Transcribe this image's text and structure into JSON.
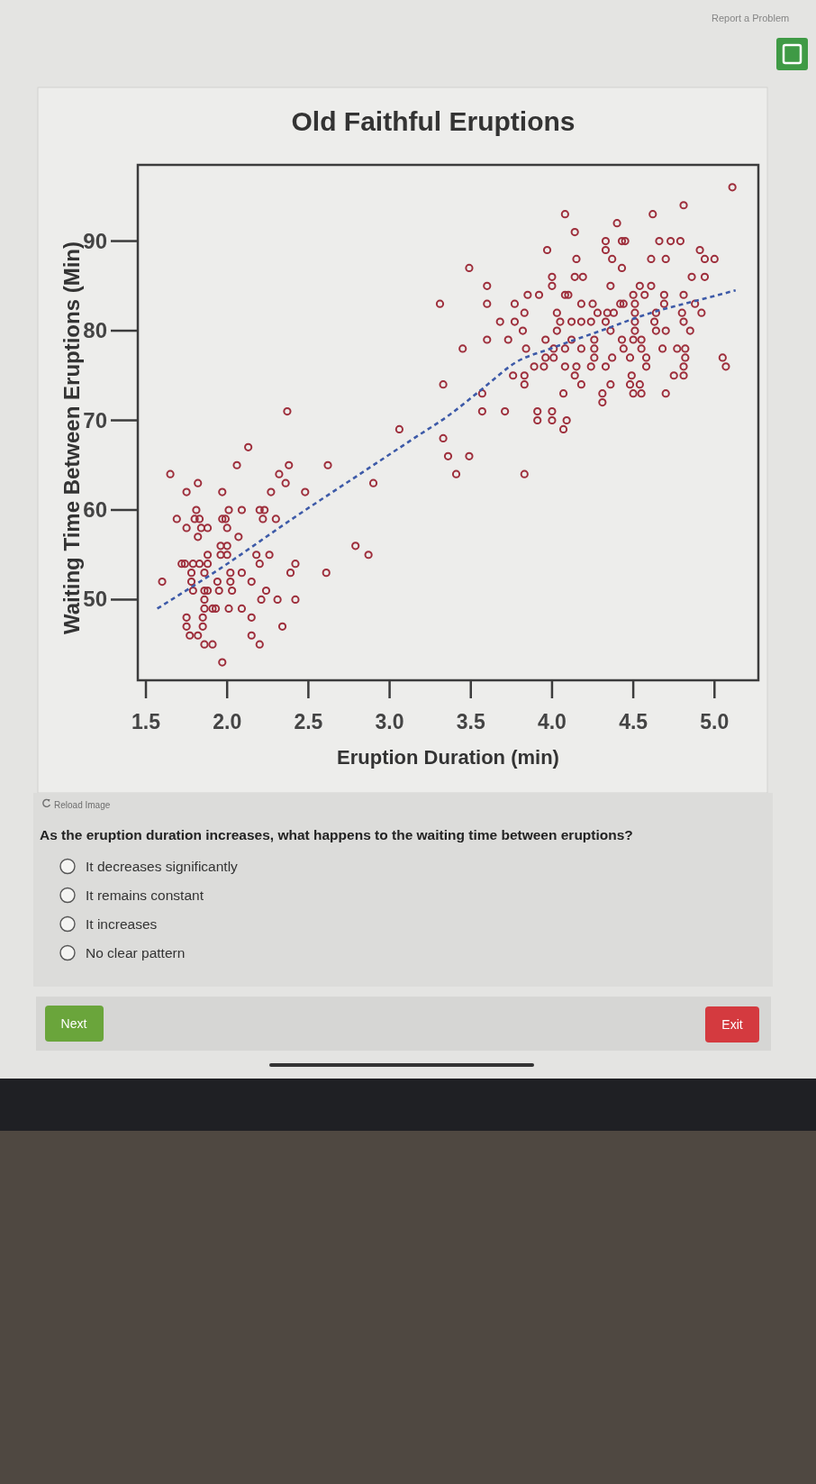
{
  "chart_data": {
    "type": "scatter",
    "title": "Old Faithful Eruptions",
    "xlabel": "Eruption Duration (min)",
    "ylabel": "Waiting Time Between Eruptions (Min)",
    "xlim": [
      1.45,
      5.27
    ],
    "ylim": [
      41,
      98.5
    ],
    "xticks": [
      1.5,
      {
        "value": 2,
        "label": "2.0"
      },
      2.5,
      {
        "value": 3,
        "label": "3.0"
      },
      3.5,
      {
        "value": 4,
        "label": "4.0"
      },
      4.5,
      {
        "value": 5,
        "label": "5.0"
      }
    ],
    "yticks": [
      50,
      60,
      70,
      80,
      90
    ],
    "marker": "circle",
    "series": [
      {
        "color": "#9e2f3c",
        "x": [
          2.37,
          3.06,
          2.13,
          2.06,
          2.38,
          2.62,
          1.65,
          2.32,
          1.82,
          2.36,
          2.9,
          1.75,
          1.97,
          2.27,
          2.48,
          1.81,
          2.01,
          2.09,
          2.2,
          2.23,
          1.69,
          1.8,
          1.83,
          1.97,
          1.99,
          2.22,
          2.3,
          1.75,
          1.84,
          1.88,
          2.0,
          1.82,
          2.07,
          1.96,
          2.0,
          2.79,
          1.88,
          1.96,
          2.0,
          2.18,
          2.26,
          2.87,
          1.72,
          1.74,
          1.79,
          1.83,
          1.88,
          2.2,
          2.42,
          1.78,
          1.86,
          2.02,
          2.09,
          2.39,
          2.61,
          1.6,
          1.78,
          1.94,
          2.02,
          2.15,
          1.79,
          1.86,
          1.88,
          1.95,
          2.03,
          2.24,
          1.86,
          2.21,
          2.31,
          2.42,
          1.86,
          1.91,
          1.93,
          2.01,
          2.09,
          1.75,
          1.85,
          2.15,
          1.75,
          1.85,
          2.34,
          1.77,
          1.82,
          2.15,
          1.86,
          1.91,
          2.2,
          1.97,
          5.11,
          4.81,
          4.62,
          4.08,
          4.4,
          4.14,
          4.33,
          4.43,
          4.45,
          4.66,
          4.73,
          4.79,
          3.97,
          4.33,
          4.91,
          4.15,
          4.37,
          4.61,
          4.7,
          4.94,
          5.0,
          3.49,
          4.43,
          4.0,
          4.14,
          4.19,
          4.86,
          4.94,
          3.6,
          4.0,
          4.36,
          4.54,
          4.61,
          3.85,
          3.92,
          4.08,
          4.1,
          4.5,
          4.57,
          4.69,
          4.81,
          3.31,
          3.6,
          3.77,
          4.18,
          4.25,
          4.42,
          4.44,
          4.51,
          4.69,
          4.88,
          3.83,
          4.03,
          4.28,
          4.34,
          4.38,
          4.51,
          4.64,
          4.8,
          4.92,
          3.68,
          3.77,
          4.05,
          4.12,
          4.18,
          4.24,
          4.33,
          4.51,
          4.63,
          4.81,
          3.82,
          4.03,
          4.36,
          4.51,
          4.64,
          4.7,
          4.85,
          3.6,
          3.73,
          3.96,
          4.12,
          4.26,
          4.43,
          4.5,
          4.55,
          3.45,
          3.84,
          4.01,
          4.08,
          4.18,
          4.26,
          4.44,
          4.55,
          4.68,
          4.77,
          4.82,
          3.96,
          4.01,
          4.26,
          4.37,
          4.48,
          4.58,
          4.82,
          5.05,
          3.89,
          3.95,
          4.08,
          4.15,
          4.24,
          4.33,
          4.58,
          4.81,
          5.07,
          3.76,
          3.83,
          4.14,
          4.49,
          4.75,
          4.81,
          3.33,
          3.83,
          4.18,
          4.36,
          4.48,
          4.54,
          3.57,
          4.07,
          4.31,
          4.5,
          4.55,
          4.7,
          4.31,
          3.57,
          3.71,
          3.91,
          4.0,
          3.91,
          4.0,
          4.09,
          4.07,
          3.33,
          3.36,
          3.49,
          3.41,
          3.83
        ],
        "values": [
          71,
          69,
          67,
          65,
          65,
          65,
          64,
          64,
          63,
          63,
          63,
          62,
          62,
          62,
          62,
          60,
          60,
          60,
          60,
          60,
          59,
          59,
          59,
          59,
          59,
          59,
          59,
          58,
          58,
          58,
          58,
          57,
          57,
          56,
          56,
          56,
          55,
          55,
          55,
          55,
          55,
          55,
          54,
          54,
          54,
          54,
          54,
          54,
          54,
          53,
          53,
          53,
          53,
          53,
          53,
          52,
          52,
          52,
          52,
          52,
          51,
          51,
          51,
          51,
          51,
          51,
          50,
          50,
          50,
          50,
          49,
          49,
          49,
          49,
          49,
          48,
          48,
          48,
          47,
          47,
          47,
          46,
          46,
          46,
          45,
          45,
          45,
          43,
          96,
          94,
          93,
          93,
          92,
          91,
          90,
          90,
          90,
          90,
          90,
          90,
          89,
          89,
          89,
          88,
          88,
          88,
          88,
          88,
          88,
          87,
          87,
          86,
          86,
          86,
          86,
          86,
          85,
          85,
          85,
          85,
          85,
          84,
          84,
          84,
          84,
          84,
          84,
          84,
          84,
          83,
          83,
          83,
          83,
          83,
          83,
          83,
          83,
          83,
          83,
          82,
          82,
          82,
          82,
          82,
          82,
          82,
          82,
          82,
          81,
          81,
          81,
          81,
          81,
          81,
          81,
          81,
          81,
          81,
          80,
          80,
          80,
          80,
          80,
          80,
          80,
          79,
          79,
          79,
          79,
          79,
          79,
          79,
          79,
          78,
          78,
          78,
          78,
          78,
          78,
          78,
          78,
          78,
          78,
          78,
          77,
          77,
          77,
          77,
          77,
          77,
          77,
          77,
          76,
          76,
          76,
          76,
          76,
          76,
          76,
          76,
          76,
          75,
          75,
          75,
          75,
          75,
          75,
          74,
          74,
          74,
          74,
          74,
          74,
          73,
          73,
          73,
          73,
          73,
          73,
          72,
          71,
          71,
          71,
          71,
          70,
          70,
          70,
          69,
          68,
          66,
          66,
          64,
          64
        ]
      },
      {
        "type": "line",
        "color": "#3d5aa8",
        "line_style": "dashed",
        "marker": "none",
        "x": [
          1.57,
          1.96,
          2.4,
          2.9,
          3.15,
          3.36,
          3.57,
          3.78,
          3.99,
          4.3,
          4.61,
          4.92,
          5.13
        ],
        "values": [
          49,
          53.5,
          59,
          65,
          68,
          70.5,
          73.5,
          76.5,
          78,
          80,
          82,
          83.5,
          84.5
        ]
      }
    ],
    "annotations": [
      "Reload Image",
      "As the eruption duration increases, what happens to the waiting time between eruptions?",
      "It decreases significantly",
      "It remains constant",
      "It increases",
      "No clear pattern",
      "Next",
      "Exit",
      "Report a Problem"
    ]
  }
}
